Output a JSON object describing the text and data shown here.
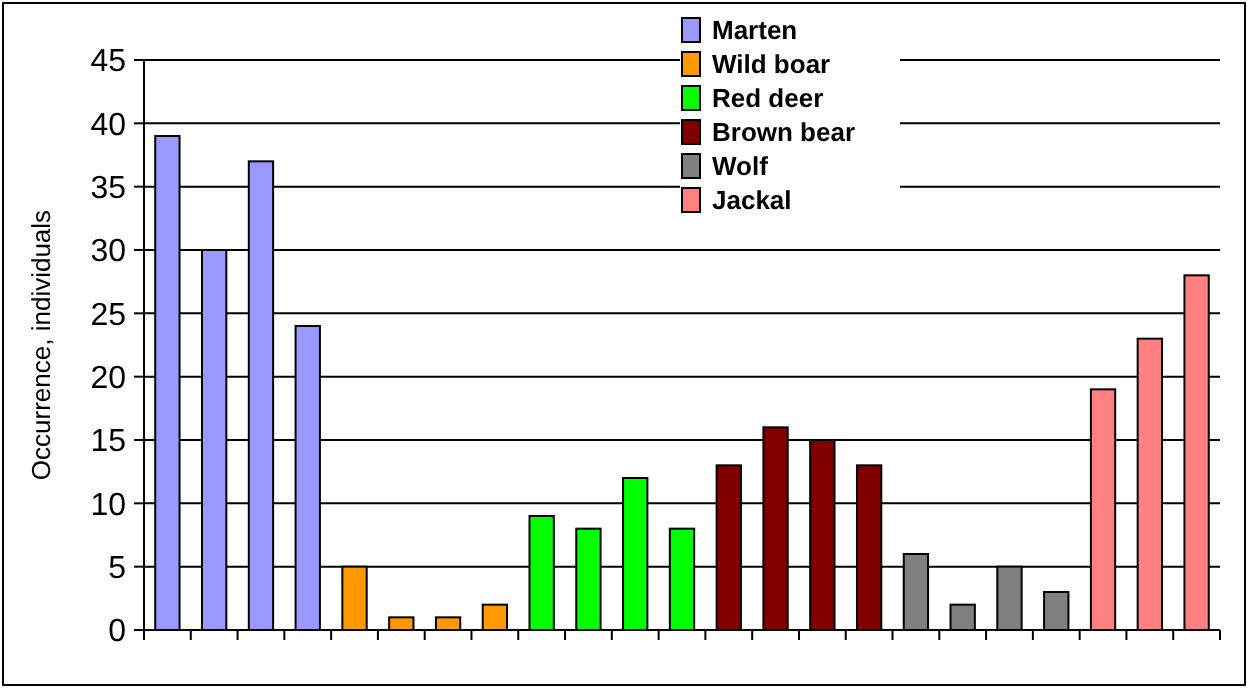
{
  "chart_data": {
    "type": "bar",
    "ylabel": "Occurrence, individuals",
    "categories": [
      null,
      null,
      null,
      null,
      null,
      null,
      null,
      null,
      null,
      null,
      null,
      null,
      null,
      null,
      null,
      null,
      null,
      null,
      null,
      null,
      null,
      null,
      null
    ],
    "series": [
      {
        "name": "Marten",
        "color": "#9999ff",
        "values": [
          39,
          30,
          37,
          24,
          null,
          null,
          null,
          null,
          null,
          null,
          null,
          null,
          null,
          null,
          null,
          null,
          null,
          null,
          null,
          null,
          null,
          null,
          null
        ]
      },
      {
        "name": "Wild boar",
        "color": "#ff9900",
        "values": [
          null,
          null,
          null,
          null,
          5,
          1,
          1,
          2,
          null,
          null,
          null,
          null,
          null,
          null,
          null,
          null,
          null,
          null,
          null,
          null,
          null,
          null,
          null
        ]
      },
      {
        "name": "Red deer",
        "color": "#00ff00",
        "values": [
          null,
          null,
          null,
          null,
          null,
          null,
          null,
          null,
          9,
          8,
          12,
          8,
          null,
          null,
          null,
          null,
          null,
          null,
          null,
          null,
          null,
          null,
          null
        ]
      },
      {
        "name": "Brown bear",
        "color": "#800000",
        "values": [
          null,
          null,
          null,
          null,
          null,
          null,
          null,
          null,
          null,
          null,
          null,
          null,
          13,
          16,
          15,
          13,
          null,
          null,
          null,
          null,
          null,
          null,
          null
        ]
      },
      {
        "name": "Wolf",
        "color": "#808080",
        "values": [
          null,
          null,
          null,
          null,
          null,
          null,
          null,
          null,
          null,
          null,
          null,
          null,
          null,
          null,
          null,
          null,
          6,
          2,
          5,
          3,
          null,
          null,
          null
        ]
      },
      {
        "name": "Jackal",
        "color": "#ff8080",
        "values": [
          null,
          null,
          null,
          null,
          null,
          null,
          null,
          null,
          null,
          null,
          null,
          null,
          null,
          null,
          null,
          null,
          null,
          null,
          null,
          null,
          19,
          23,
          28
        ]
      }
    ],
    "ylim": [
      0,
      45
    ],
    "yticks": [
      0,
      5,
      10,
      15,
      20,
      25,
      30,
      35,
      40,
      45
    ],
    "grid": "y",
    "legend": "top"
  }
}
